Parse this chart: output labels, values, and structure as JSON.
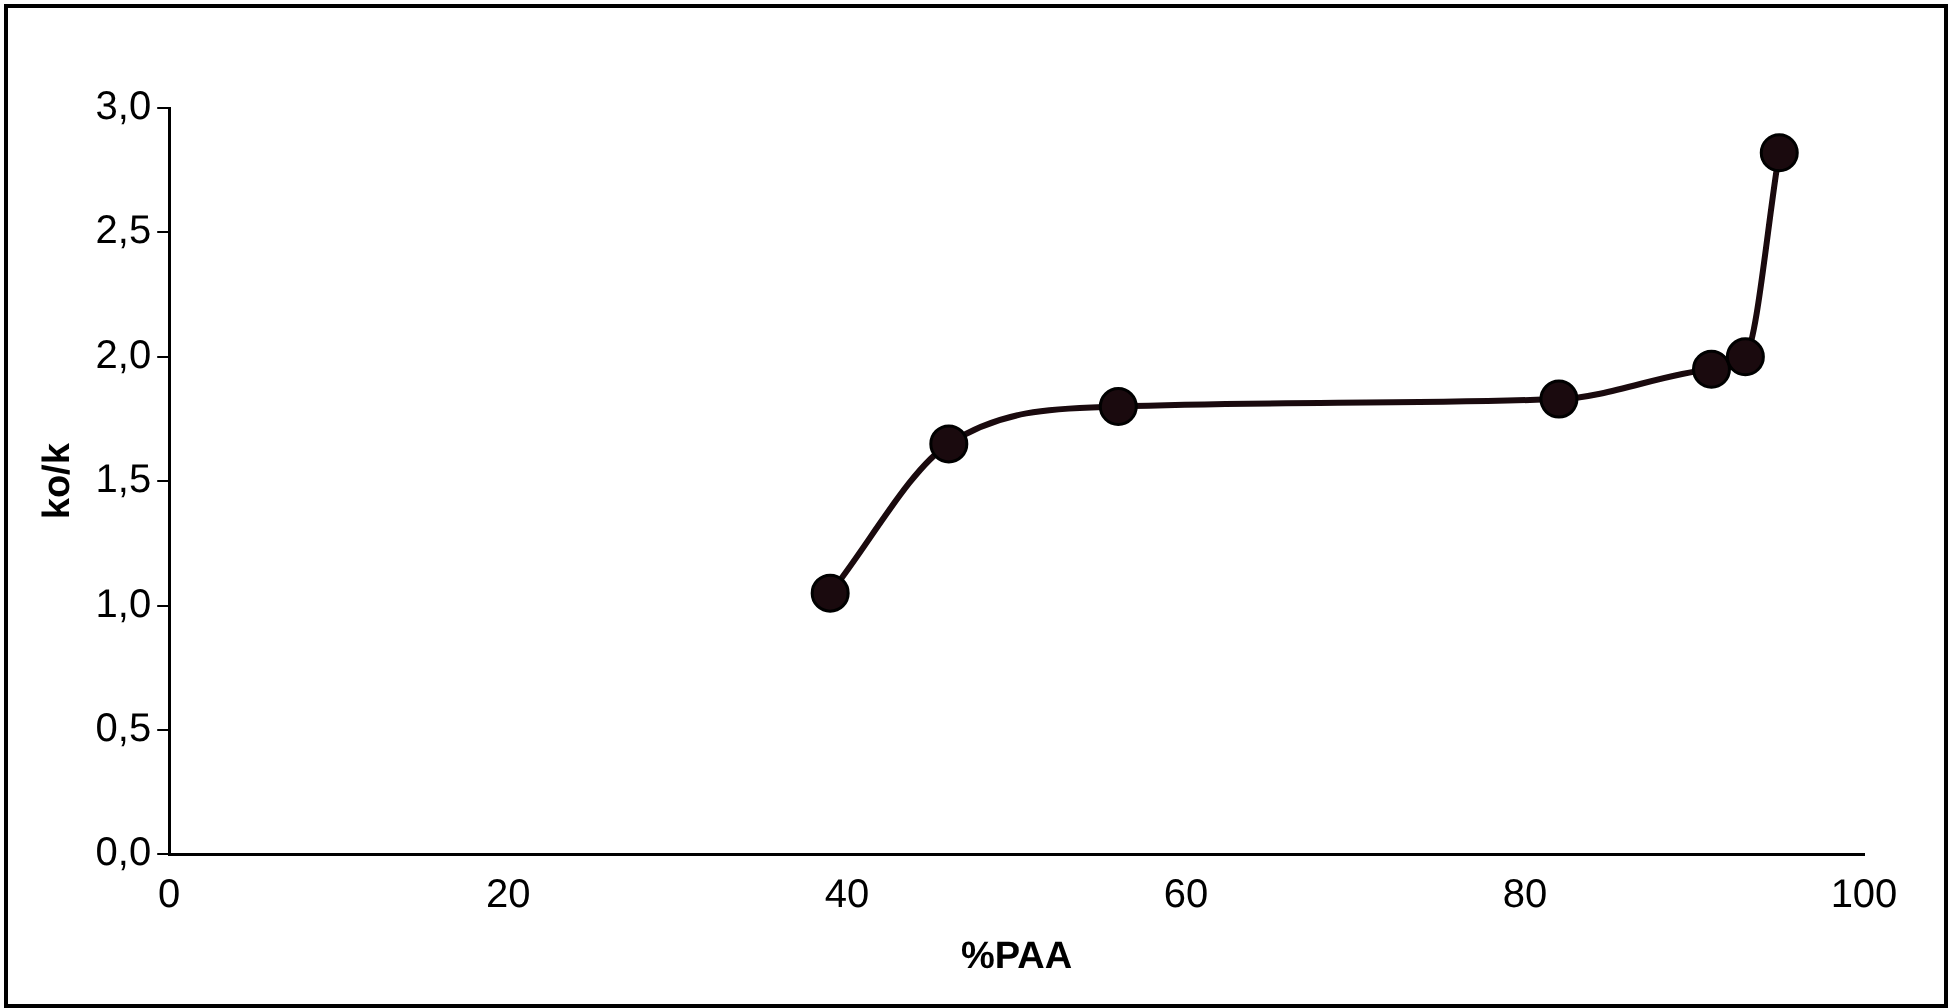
{
  "chart_data": {
    "type": "line",
    "xlabel": "%PAA",
    "ylabel": "ko/k",
    "x": [
      39,
      46,
      56,
      82,
      91,
      93,
      95
    ],
    "values": [
      1.05,
      1.65,
      1.8,
      1.83,
      1.95,
      2.0,
      2.82
    ],
    "color": "#1a0a0e",
    "marker": "circle",
    "xlim": [
      0,
      100
    ],
    "xticks": [
      {
        "value": 0,
        "label": "0"
      },
      {
        "value": 20,
        "label": "20"
      },
      {
        "value": 40,
        "label": "40"
      },
      {
        "value": 60,
        "label": "60"
      },
      {
        "value": 80,
        "label": "80"
      },
      {
        "value": 100,
        "label": "100"
      }
    ],
    "ylim": [
      0,
      3
    ],
    "yticks": [
      {
        "value": 0,
        "label": "0,0"
      },
      {
        "value": 0.5,
        "label": "0,5"
      },
      {
        "value": 1,
        "label": "1,0"
      },
      {
        "value": 1.5,
        "label": "1,5"
      },
      {
        "value": 2,
        "label": "2,0"
      },
      {
        "value": 2.5,
        "label": "2,5"
      },
      {
        "value": 3,
        "label": "3,0"
      }
    ],
    "grid": false,
    "legend": false
  }
}
